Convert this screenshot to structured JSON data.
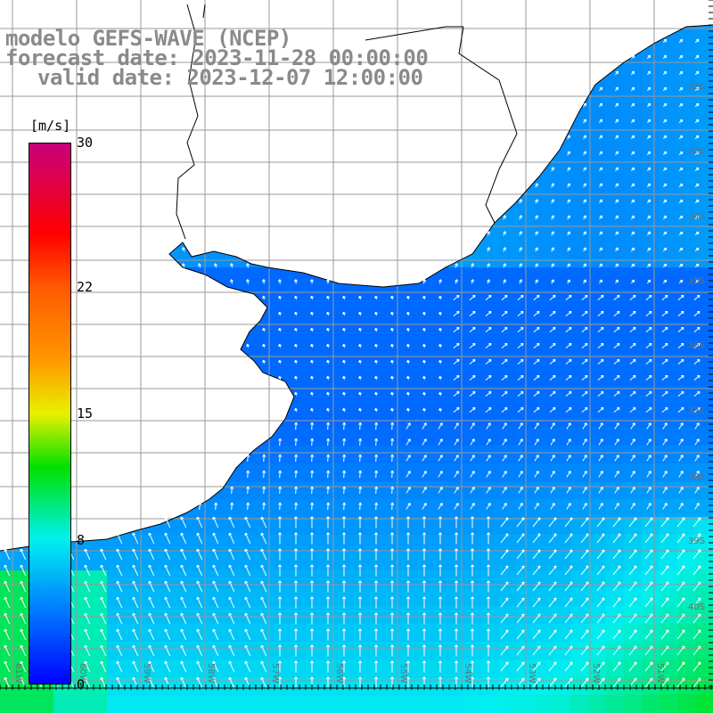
{
  "title": {
    "line1": "modelo GEFS-WAVE (NCEP)",
    "line2": "forecast date: 2023-11-28 00:00:00",
    "line3": "valid date: 2023-12-07 12:00:00"
  },
  "colorbar": {
    "unit": "[m/s]",
    "ticks": [
      "30",
      "22",
      "15",
      "8",
      "0"
    ],
    "tick_values": [
      30,
      22,
      15,
      8,
      0
    ],
    "range": [
      0,
      30
    ],
    "stops": [
      {
        "value": 0,
        "color": "#0000ff"
      },
      {
        "value": 4,
        "color": "#0078ff"
      },
      {
        "value": 8,
        "color": "#00f0f0"
      },
      {
        "value": 12,
        "color": "#00e000"
      },
      {
        "value": 15,
        "color": "#e8f000"
      },
      {
        "value": 18,
        "color": "#ff9600"
      },
      {
        "value": 22,
        "color": "#ff5a00"
      },
      {
        "value": 25,
        "color": "#ff0000"
      },
      {
        "value": 30,
        "color": "#c8007a"
      }
    ]
  },
  "map": {
    "lat_labels": [
      "32S",
      "33S",
      "34S",
      "35S",
      "36S",
      "37S",
      "38S",
      "39S",
      "40S"
    ],
    "lon_labels": [
      "61W",
      "60W",
      "59W",
      "58W",
      "57W",
      "56W",
      "55W",
      "54W",
      "53W",
      "52W",
      "51W"
    ],
    "ocean_color": "#1e7bff",
    "land_color": "#ffffff",
    "grid_color": "#9a9a9a",
    "coast_color": "#000000",
    "vector_color": "#ffffff"
  }
}
